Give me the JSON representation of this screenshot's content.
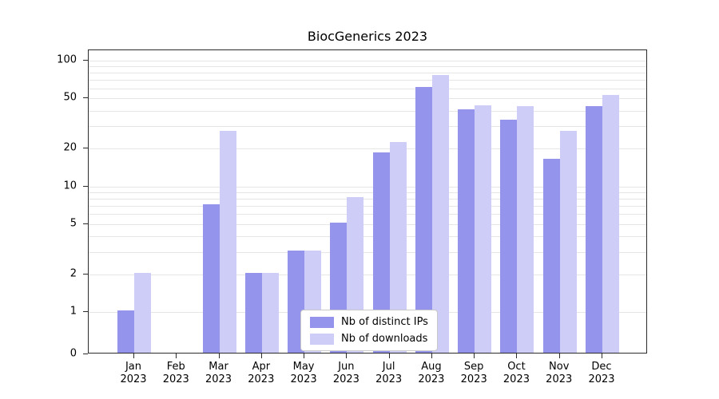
{
  "chart_data": {
    "type": "bar",
    "title": "BiocGenerics 2023",
    "yscale": "log (linear segment from 0 to 1, log from 1 to 100)",
    "categories": [
      "Jan 2023",
      "Feb 2023",
      "Mar 2023",
      "Apr 2023",
      "May 2023",
      "Jun 2023",
      "Jul 2023",
      "Aug 2023",
      "Sep 2023",
      "Oct 2023",
      "Nov 2023",
      "Dec 2023"
    ],
    "series": [
      {
        "name": "Nb of distinct IPs",
        "color": "#9494ec",
        "values": [
          1,
          0,
          7,
          2,
          3,
          5,
          18,
          60,
          40,
          33,
          16,
          42
        ]
      },
      {
        "name": "Nb of downloads",
        "color": "#cdcdf7",
        "values": [
          2,
          0,
          27,
          2,
          3,
          8,
          22,
          75,
          43,
          42,
          27,
          52
        ]
      }
    ],
    "yticks": [
      0,
      1,
      2,
      5,
      10,
      20,
      50,
      100
    ],
    "ylim": [
      0,
      120
    ],
    "grid": true,
    "legend_position": "lower center"
  },
  "colors": {
    "grid": "#e6e6e6",
    "axis": "#2b2b2b",
    "background": "#ffffff"
  }
}
